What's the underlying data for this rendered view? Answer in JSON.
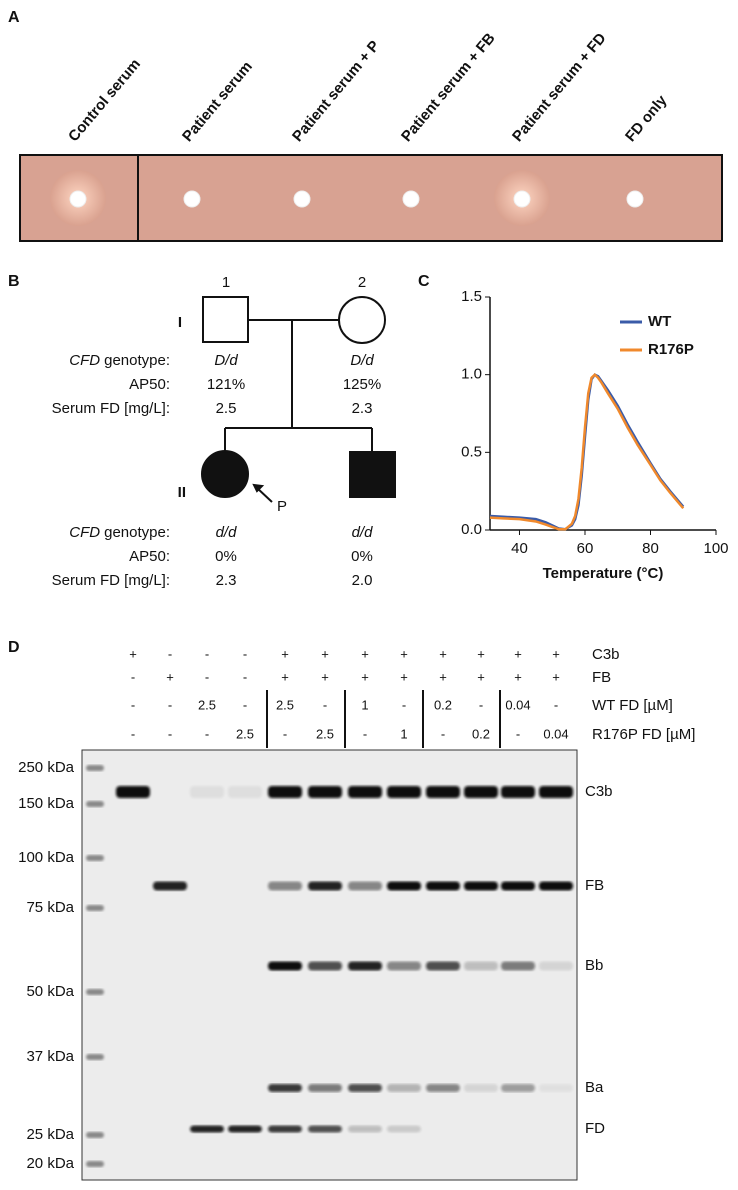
{
  "panel_a": {
    "label": "A",
    "samples": [
      "Control serum",
      "Patient serum",
      "Patient serum + P",
      "Patient serum + FB",
      "Patient serum + FD",
      "FD only"
    ]
  },
  "panel_b": {
    "label": "B",
    "generations": [
      "I",
      "II"
    ],
    "individual_numbers": [
      "1",
      "2"
    ],
    "proband_marker": "P",
    "row_labels": {
      "gene": "CFD",
      "genotype": "genotype:",
      "ap50": "AP50:",
      "serum_fd": "Serum FD [mg/L]:"
    },
    "generation_I": [
      {
        "genotype": "D/d",
        "ap50": "121%",
        "serum_fd": "2.5"
      },
      {
        "genotype": "D/d",
        "ap50": "125%",
        "serum_fd": "2.3"
      }
    ],
    "generation_II": [
      {
        "genotype": "d/d",
        "ap50": "0%",
        "serum_fd": "2.3"
      },
      {
        "genotype": "d/d",
        "ap50": "0%",
        "serum_fd": "2.0"
      }
    ]
  },
  "chart_data": {
    "type": "line",
    "panel_label": "C",
    "x_label": "Temperature (°C)",
    "x": [
      31,
      35,
      40,
      45,
      48,
      50,
      52,
      54,
      56,
      57,
      58,
      59,
      60,
      61,
      62,
      63,
      64,
      65,
      67,
      70,
      73,
      76,
      80,
      83,
      86,
      90
    ],
    "series": [
      {
        "name": "WT",
        "color": "#3a5ba8",
        "values": [
          0.09,
          0.085,
          0.08,
          0.07,
          0.05,
          0.03,
          0.01,
          0.005,
          0.03,
          0.07,
          0.16,
          0.35,
          0.6,
          0.84,
          0.97,
          1.0,
          0.99,
          0.96,
          0.9,
          0.8,
          0.68,
          0.57,
          0.43,
          0.33,
          0.25,
          0.15
        ]
      },
      {
        "name": "R176P",
        "color": "#f0892c",
        "values": [
          0.08,
          0.075,
          0.07,
          0.055,
          0.035,
          0.02,
          0.005,
          0.005,
          0.04,
          0.09,
          0.2,
          0.4,
          0.66,
          0.88,
          0.98,
          1.0,
          0.98,
          0.95,
          0.88,
          0.78,
          0.66,
          0.55,
          0.42,
          0.32,
          0.24,
          0.14
        ]
      }
    ],
    "xlim": [
      31,
      100
    ],
    "xticks": [
      40,
      60,
      80,
      100
    ],
    "ylim": [
      0,
      1.5
    ],
    "yticks": [
      {
        "value": 0,
        "label": "0.0"
      },
      0.5,
      {
        "value": 1,
        "label": "1.0"
      },
      1.5
    ],
    "legend": "upper right"
  },
  "panel_d": {
    "label": "D",
    "conditions": [
      {
        "name": "C3b",
        "lanes": [
          "+",
          "-",
          "-",
          "-",
          "+",
          "+",
          "+",
          "+",
          "+",
          "+",
          "+",
          "+"
        ]
      },
      {
        "name": "FB",
        "lanes": [
          "-",
          "+",
          "-",
          "-",
          "+",
          "+",
          "+",
          "+",
          "+",
          "+",
          "+",
          "+"
        ]
      },
      {
        "name": "WT FD [µM]",
        "lanes": [
          "-",
          "-",
          "2.5",
          "-",
          "2.5",
          "-",
          "1",
          "-",
          "0.2",
          "-",
          "0.04",
          "-"
        ]
      },
      {
        "name": "R176P FD [µM]",
        "lanes": [
          "-",
          "-",
          "-",
          "2.5",
          "-",
          "2.5",
          "-",
          "1",
          "-",
          "0.2",
          "-",
          "0.04"
        ]
      }
    ],
    "markers": [
      "250 kDa",
      "150 kDa",
      "100 kDa",
      "75 kDa",
      "50 kDa",
      "37 kDa",
      "25 kDa",
      "20 kDa"
    ],
    "bands": [
      "C3b",
      "FB",
      "Bb",
      "Ba",
      "FD"
    ]
  }
}
